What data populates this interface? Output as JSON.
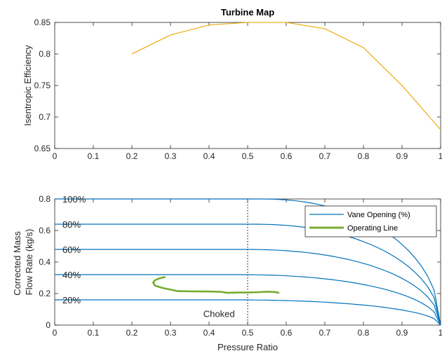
{
  "chart_data": [
    {
      "type": "line",
      "title": "Turbine Map",
      "xlabel": "",
      "ylabel": "Isentropic Efficiency",
      "xlim": [
        0,
        1
      ],
      "ylim": [
        0.65,
        0.85
      ],
      "xticks": [
        "0",
        "0.1",
        "0.2",
        "0.3",
        "0.4",
        "0.5",
        "0.6",
        "0.7",
        "0.8",
        "0.9",
        "1"
      ],
      "yticks": [
        "0.65",
        "0.7",
        "0.75",
        "0.8",
        "0.85"
      ],
      "grid": false,
      "series": [
        {
          "color": "#EDB120",
          "x": [
            0.2,
            0.3,
            0.4,
            0.5,
            0.6,
            0.7,
            0.8,
            0.9,
            1.0
          ],
          "y": [
            0.8,
            0.83,
            0.846,
            0.85,
            0.85,
            0.84,
            0.81,
            0.75,
            0.68
          ]
        }
      ]
    },
    {
      "type": "line",
      "title": "",
      "xlabel": "Pressure Ratio",
      "ylabel": "Corrected Mass Flow Rate (kg/s)",
      "ylabel_lines": [
        "Corrected Mass",
        "Flow Rate (kg/s)"
      ],
      "xlim": [
        0,
        1
      ],
      "ylim": [
        0,
        0.8
      ],
      "xticks": [
        "0",
        "0.1",
        "0.2",
        "0.3",
        "0.4",
        "0.5",
        "0.6",
        "0.7",
        "0.8",
        "0.9",
        "1"
      ],
      "yticks": [
        "0",
        "0.2",
        "0.4",
        "0.6",
        "0.8"
      ],
      "grid": false,
      "legend": {
        "location": "top-right",
        "entries": [
          {
            "label": "Vane Opening (%)",
            "color": "#0072BD"
          },
          {
            "label": "Operating Line",
            "color": "#77AC30"
          }
        ]
      },
      "vane_curves": [
        {
          "label": "100%",
          "flow": 0.8,
          "knee": 0.53
        },
        {
          "label": "80%",
          "flow": 0.64,
          "knee": 0.51
        },
        {
          "label": "60%",
          "flow": 0.48,
          "knee": 0.49
        },
        {
          "label": "40%",
          "flow": 0.32,
          "knee": 0.47
        },
        {
          "label": "20%",
          "flow": 0.16,
          "knee": 0.45
        }
      ],
      "vane_color": "#0072BD",
      "operating_line": {
        "color": "#77AC30",
        "x": [
          0.285,
          0.27,
          0.26,
          0.255,
          0.26,
          0.28,
          0.3,
          0.32,
          0.36,
          0.4,
          0.43,
          0.44,
          0.45,
          0.47,
          0.5,
          0.53,
          0.55,
          0.57,
          0.58
        ],
        "y": [
          0.305,
          0.295,
          0.285,
          0.27,
          0.25,
          0.235,
          0.225,
          0.215,
          0.214,
          0.213,
          0.211,
          0.207,
          0.205,
          0.206,
          0.207,
          0.209,
          0.212,
          0.21,
          0.205
        ]
      },
      "choked_line": {
        "x": 0.5,
        "color": "#000000"
      },
      "annotations": [
        {
          "text": "Choked",
          "x": 0.385,
          "y": 0.07
        }
      ]
    }
  ]
}
